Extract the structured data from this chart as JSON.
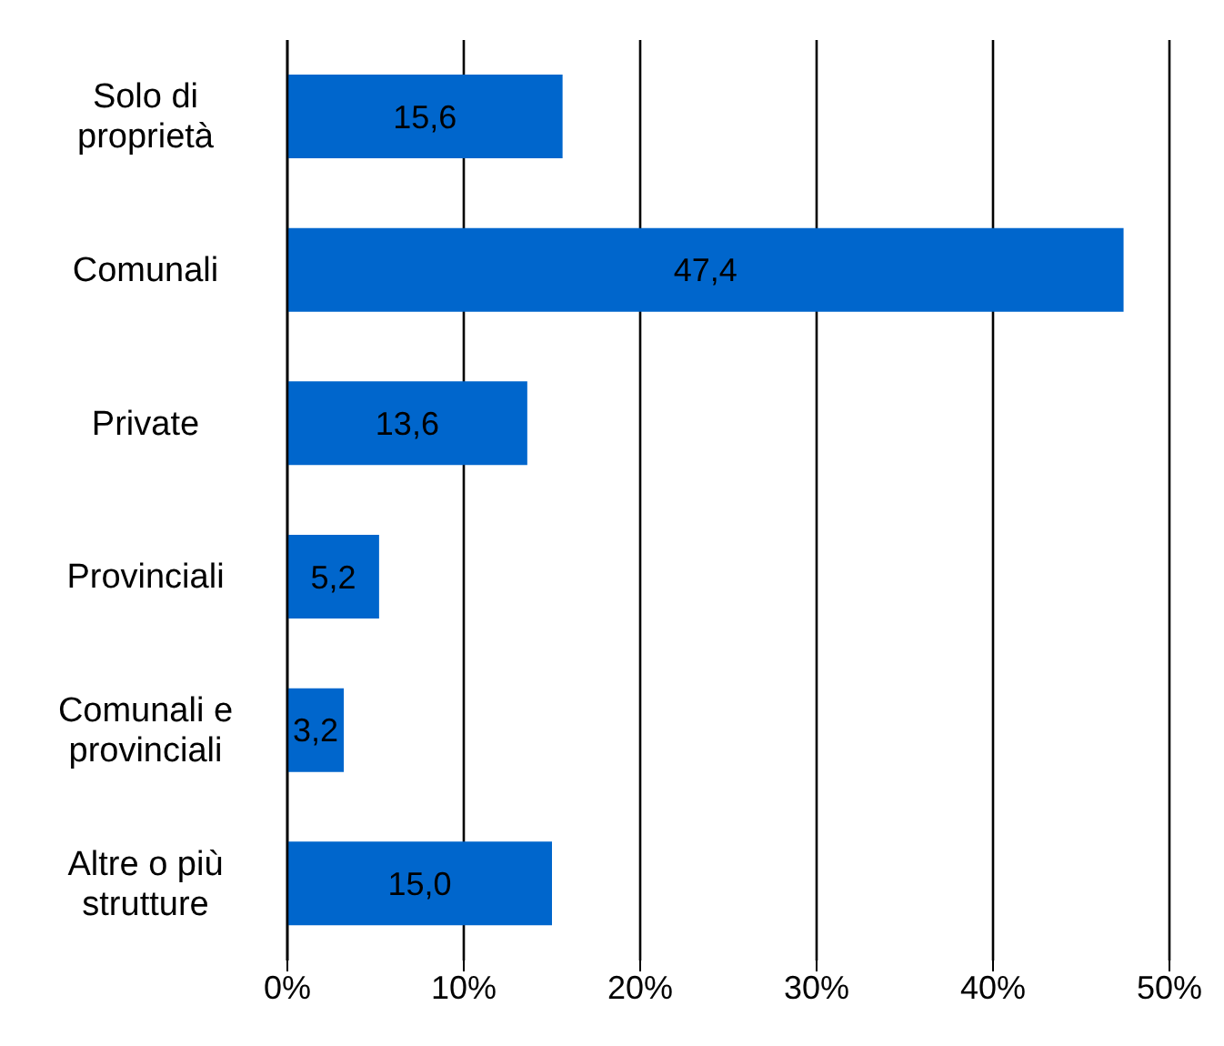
{
  "chart_data": {
    "type": "bar",
    "orientation": "horizontal",
    "categories": [
      "Solo di proprietà",
      "Comunali",
      "Private",
      "Provinciali",
      "Comunali e provinciali",
      "Altre o più strutture"
    ],
    "values": [
      15.6,
      47.4,
      13.6,
      5.2,
      3.2,
      15.0
    ],
    "value_labels": [
      "15,6",
      "47,4",
      "13,6",
      "5,2",
      "3,2",
      "15,0"
    ],
    "color": "#0066cc",
    "xlim": [
      0,
      50
    ],
    "xticks": [
      {
        "value": 0,
        "label": "0%"
      },
      {
        "value": 10,
        "label": "10%"
      },
      {
        "value": 20,
        "label": "20%"
      },
      {
        "value": 30,
        "label": "30%"
      },
      {
        "value": 40,
        "label": "40%"
      },
      {
        "value": 50,
        "label": "50%"
      }
    ],
    "grid": "x"
  }
}
